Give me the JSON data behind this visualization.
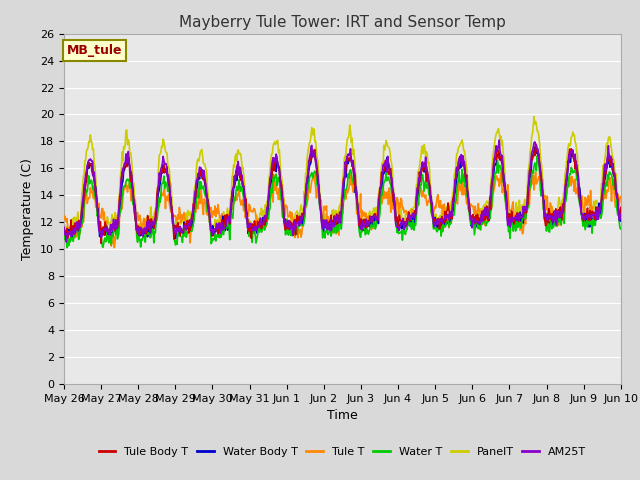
{
  "title": "Mayberry Tule Tower: IRT and Sensor Temp",
  "xlabel": "Time",
  "ylabel": "Temperature (C)",
  "ylim": [
    0,
    26
  ],
  "yticks": [
    0,
    2,
    4,
    6,
    8,
    10,
    12,
    14,
    16,
    18,
    20,
    22,
    24,
    26
  ],
  "xtick_labels": [
    "May 26",
    "May 27",
    "May 28",
    "May 29",
    "May 30",
    "May 31",
    "Jun 1",
    "Jun 2",
    "Jun 3",
    "Jun 4",
    "Jun 5",
    "Jun 6",
    "Jun 7",
    "Jun 8",
    "Jun 9",
    "Jun 10"
  ],
  "series_colors": {
    "Tule Body T": "#cc0000",
    "Water Body T": "#0000cc",
    "Tule T": "#ff8800",
    "Water T": "#00cc00",
    "PanelT": "#cccc00",
    "AM25T": "#8800cc"
  },
  "legend_text": "MB_tule",
  "legend_text_color": "#990000",
  "legend_box_facecolor": "#ffffcc",
  "legend_box_edgecolor": "#888800",
  "bg_color": "#d9d9d9",
  "plot_bg_color": "#e8e8e8",
  "grid_color": "#ffffff",
  "title_fontsize": 11,
  "axis_fontsize": 9,
  "tick_fontsize": 8,
  "linewidth": 1.2
}
